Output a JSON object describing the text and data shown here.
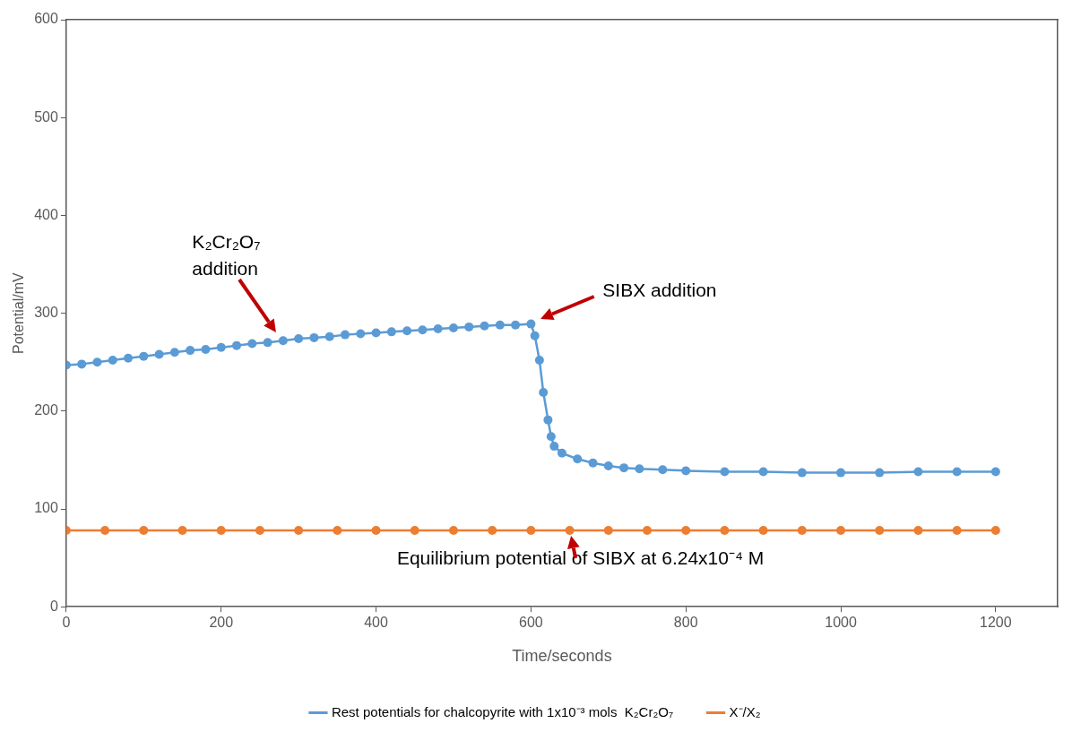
{
  "chart_data": {
    "type": "line",
    "xlabel": "Time/seconds",
    "ylabel": "Potential/mV",
    "xlim": [
      0,
      1280
    ],
    "xticks": [
      0,
      200,
      400,
      600,
      800,
      1000,
      1200
    ],
    "ylim": [
      0,
      600
    ],
    "yticks": [
      0,
      100,
      200,
      300,
      400,
      500,
      600
    ],
    "grid": false,
    "legend": "bottom",
    "marker": "circle",
    "line_style": "solid",
    "series": [
      {
        "name": "Rest potentials for chalcopyrite with 1x10⁻³ mols  K₂Cr₂O₇",
        "color": "#5b9bd5",
        "x": [
          0,
          20,
          40,
          60,
          80,
          100,
          120,
          140,
          160,
          180,
          200,
          220,
          240,
          260,
          280,
          300,
          320,
          340,
          360,
          380,
          400,
          420,
          440,
          460,
          480,
          500,
          520,
          540,
          560,
          580,
          600,
          605,
          611,
          616,
          622,
          626,
          630,
          640,
          660,
          680,
          700,
          720,
          740,
          770,
          800,
          850,
          900,
          950,
          1000,
          1050,
          1100,
          1150,
          1200
        ],
        "values": [
          247,
          248,
          250,
          252,
          254,
          256,
          258,
          260,
          262,
          263,
          265,
          267,
          269,
          270,
          272,
          274,
          275,
          276,
          278,
          279,
          280,
          281,
          282,
          283,
          284,
          285,
          286,
          287,
          288,
          288,
          289,
          277,
          252,
          219,
          191,
          174,
          164,
          157,
          151,
          147,
          144,
          142,
          141,
          140,
          139,
          138,
          138,
          137,
          137,
          137,
          138,
          138,
          138
        ]
      },
      {
        "name": "X⁻/X₂",
        "color": "#ed7d31",
        "x": [
          0,
          50,
          100,
          150,
          200,
          250,
          300,
          350,
          400,
          450,
          500,
          550,
          600,
          650,
          700,
          750,
          800,
          850,
          900,
          950,
          1000,
          1050,
          1100,
          1150,
          1200
        ],
        "values": [
          78,
          78,
          78,
          78,
          78,
          78,
          78,
          78,
          78,
          78,
          78,
          78,
          78,
          78,
          78,
          78,
          78,
          78,
          78,
          78,
          78,
          78,
          78,
          78,
          78
        ]
      }
    ],
    "annotations": [
      "K₂Cr₂O₇\naddition",
      "SIBX addition",
      {
        "text": "Equilibrium potential of SIBX at 6.24x10⁻⁴ M",
        "x": 650,
        "y": 78
      }
    ]
  }
}
